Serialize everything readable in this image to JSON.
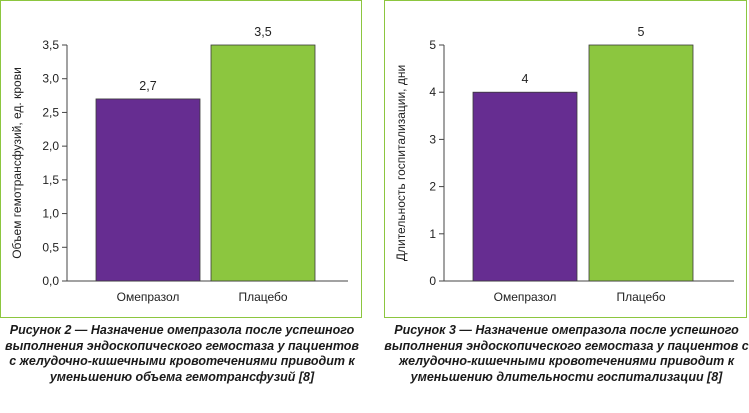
{
  "chart_data": [
    {
      "type": "bar",
      "categories": [
        "Омепразол",
        "Плацебо"
      ],
      "values": [
        2.7,
        3.5
      ],
      "value_labels": [
        "2,7",
        "3,5"
      ],
      "bar_colors": [
        "#662d91",
        "#8cc63f"
      ],
      "ylabel": "Объем гемотрансфузий, ед. крови",
      "ylim": [
        0,
        3.5
      ],
      "yticks": [
        0,
        0.5,
        1.0,
        1.5,
        2.0,
        2.5,
        3.0,
        3.5
      ],
      "ytick_labels": [
        "0,0",
        "0,5",
        "1,0",
        "1,5",
        "2,0",
        "2,5",
        "3,0",
        "3,5"
      ],
      "grid": false,
      "caption": "Рисунок 2 — Назначение омепразола после успешного выполнения эндоскопического гемостаза у пациентов с желудочно-кишечными кровотечениями приводит к уменьшению объема гемотрансфузий [8]"
    },
    {
      "type": "bar",
      "categories": [
        "Омепразол",
        "Плацебо"
      ],
      "values": [
        4,
        5
      ],
      "value_labels": [
        "4",
        "5"
      ],
      "bar_colors": [
        "#662d91",
        "#8cc63f"
      ],
      "ylabel": "Длительность госпитализации, дни",
      "ylim": [
        0,
        5
      ],
      "yticks": [
        0,
        1,
        2,
        3,
        4,
        5
      ],
      "ytick_labels": [
        "0",
        "1",
        "2",
        "3",
        "4",
        "5"
      ],
      "grid": false,
      "caption": "Рисунок 3 — Назначение омепразола после успешного выполнения эндоскопического гемостаза у пациентов с желудочно-кишечными кровотечениями приводит к уменьшению длительности госпитализации [8]"
    }
  ],
  "colors": {
    "frame": "#8cc63f",
    "omeprazole": "#662d91",
    "placebo": "#8cc63f"
  }
}
